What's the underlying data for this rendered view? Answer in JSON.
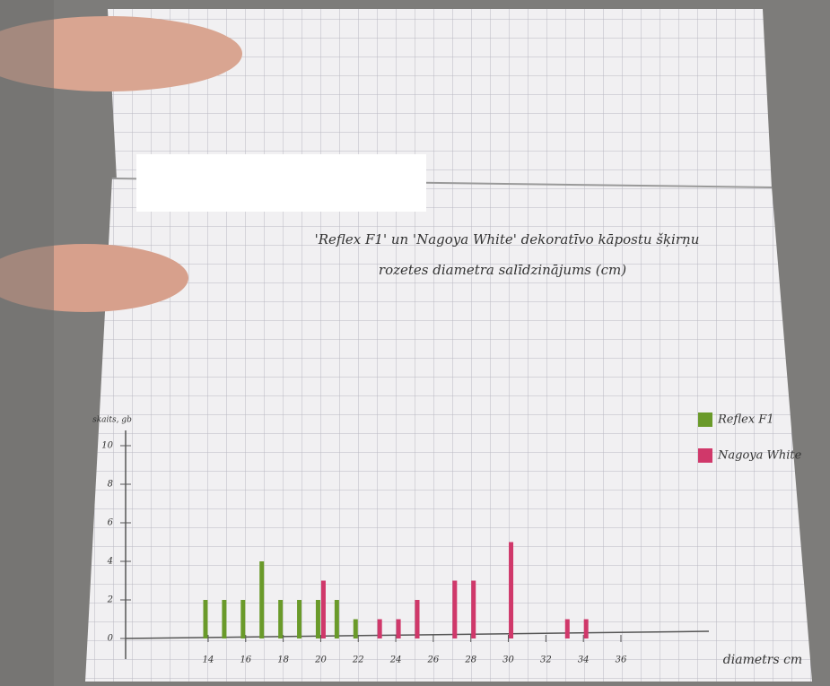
{
  "chart_data": {
    "type": "bar",
    "title": "'Reflex F1' un 'Nagoya White' dekoratīvo kāpostu šķirņu",
    "subtitle": "rozetes diametra salīdzinājums (cm)",
    "y_label": "skaits, gb",
    "x_label": "diametrs cm",
    "x": [
      14,
      15,
      16,
      17,
      18,
      19,
      20,
      21,
      22,
      23,
      24,
      25,
      26,
      27,
      28,
      29,
      30,
      31,
      32,
      33,
      34,
      35,
      36
    ],
    "series": [
      {
        "name": "Reflex F1",
        "color": "#6a9a2a",
        "values": [
          2,
          2,
          2,
          4,
          2,
          2,
          2,
          2,
          1,
          0,
          0,
          0,
          0,
          0,
          0,
          0,
          0,
          0,
          0,
          0,
          0,
          0,
          0
        ]
      },
      {
        "name": "Nagoya White",
        "color": "#d0386a",
        "values": [
          0,
          0,
          0,
          0,
          0,
          0,
          3,
          0,
          0,
          1,
          1,
          2,
          0,
          3,
          3,
          0,
          5,
          0,
          0,
          1,
          1,
          0,
          0
        ]
      }
    ],
    "xlim": [
      14,
      36
    ],
    "xticks": [
      14,
      16,
      18,
      20,
      22,
      24,
      26,
      28,
      30,
      32,
      34,
      36
    ],
    "ylim": [
      0,
      10
    ],
    "yticks": [
      0,
      2,
      4,
      6,
      8,
      10
    ],
    "legend": "right"
  }
}
